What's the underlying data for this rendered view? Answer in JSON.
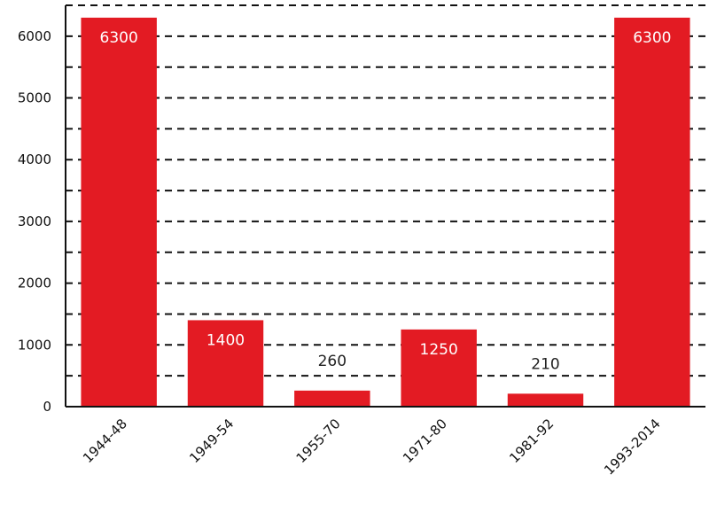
{
  "chart_data": {
    "type": "bar",
    "categories": [
      "1944-48",
      "1949-54",
      "1955-70",
      "1971-80",
      "1981-92",
      "1993-2014"
    ],
    "values": [
      6300,
      1400,
      260,
      1250,
      210,
      6300
    ],
    "value_labels": [
      "6300",
      "1400",
      "260",
      "1250",
      "210",
      "6300"
    ],
    "ylim": [
      0,
      6500
    ],
    "yticks": [
      0,
      1000,
      2000,
      3000,
      4000,
      5000,
      6000
    ],
    "ytick_labels": [
      "0",
      "1000",
      "2000",
      "3000",
      "4000",
      "5000",
      "6000"
    ],
    "grid": "dashed horizontal every 500",
    "legend": "none",
    "title": "",
    "xlabel": "",
    "ylabel": "",
    "colors": {
      "bar": "#e31b23",
      "grid": "#111111",
      "axis": "#111111",
      "label_inside": "#ffffff",
      "label_outside": "#222222"
    }
  }
}
